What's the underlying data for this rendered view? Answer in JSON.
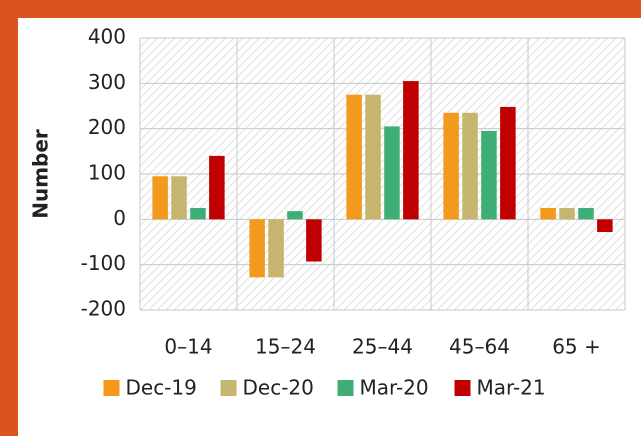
{
  "chart_data": {
    "type": "bar",
    "ylabel": "Number",
    "categories": [
      "0–14",
      "15–24",
      "25–44",
      "45–64",
      "65 +"
    ],
    "series": [
      {
        "name": "Dec-19",
        "color": "#f39a1e",
        "values": [
          95,
          -128,
          275,
          235,
          25
        ]
      },
      {
        "name": "Dec-20",
        "color": "#c6b56e",
        "values": [
          95,
          -128,
          275,
          235,
          25
        ]
      },
      {
        "name": "Mar-20",
        "color": "#3fae76",
        "values": [
          25,
          18,
          205,
          195,
          25
        ]
      },
      {
        "name": "Mar-21",
        "color": "#c00000",
        "values": [
          140,
          -93,
          305,
          248,
          -28
        ]
      }
    ],
    "ylim": [
      -200,
      400
    ],
    "yticks": [
      -200,
      -100,
      0,
      100,
      200,
      300,
      400
    ],
    "grid": true,
    "legend": "bottom"
  }
}
